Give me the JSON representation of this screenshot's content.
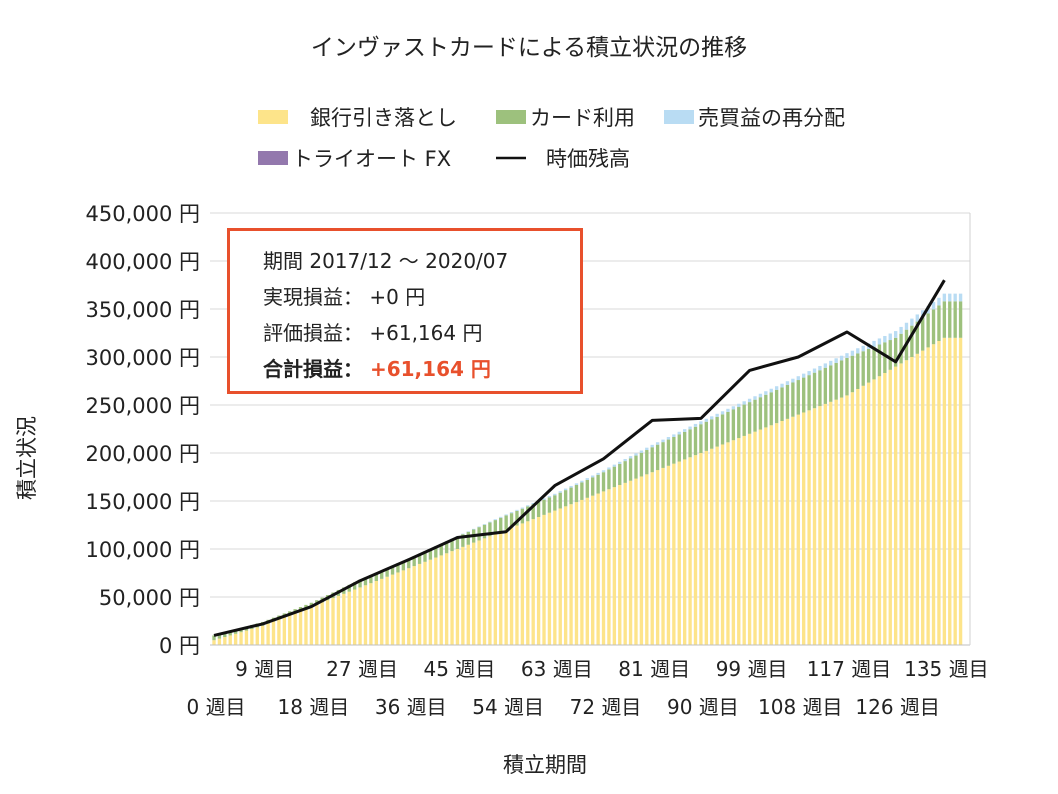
{
  "chart_data": {
    "type": "bar",
    "title": "インヴァストカードによる積立状況の推移",
    "xlabel": "積立期間",
    "ylabel": "積立状況",
    "ylim": [
      0,
      450000
    ],
    "yticks": [
      "0 円",
      "50,000 円",
      "100,000 円",
      "150,000 円",
      "200,000 円",
      "250,000 円",
      "300,000 円",
      "350,000 円",
      "400,000 円",
      "450,000 円"
    ],
    "xtick_labels_upper": [
      "9 週目",
      "27 週目",
      "45 週目",
      "63 週目",
      "81 週目",
      "99 週目",
      "117 週目",
      "135 週目"
    ],
    "xtick_labels_lower": [
      "0 週目",
      "18 週目",
      "36 週目",
      "54 週目",
      "72 週目",
      "90 週目",
      "108 週目",
      "126 週目"
    ],
    "xtick_upper_weeks": [
      9,
      27,
      45,
      63,
      81,
      99,
      117,
      135
    ],
    "xtick_lower_weeks": [
      0,
      18,
      36,
      54,
      72,
      90,
      108,
      126
    ],
    "legend": [
      "銀行引き落とし",
      "カード利用",
      "売買益の再分配",
      "トライオート FX",
      "時価残高"
    ],
    "colors": {
      "bank": "#fde48a",
      "card": "#9dc17d",
      "redistribution": "#b9dcf3",
      "autofx": "#9378ad",
      "balance": "#111111"
    },
    "x_weeks": [
      0,
      9,
      18,
      27,
      36,
      45,
      54,
      63,
      72,
      81,
      90,
      99,
      108,
      117,
      126,
      135
    ],
    "series": [
      {
        "name": "銀行引き落とし",
        "values": [
          5000,
          20000,
          40000,
          60000,
          80000,
          100000,
          120000,
          140000,
          160000,
          180000,
          200000,
          220000,
          240000,
          260000,
          290000,
          320000
        ]
      },
      {
        "name": "カード利用",
        "values": [
          5000,
          4000,
          4000,
          8000,
          10000,
          13000,
          15000,
          16000,
          20000,
          26000,
          30000,
          33000,
          36000,
          39000,
          30000,
          38000
        ]
      },
      {
        "name": "売買益の再分配",
        "values": [
          0,
          0,
          0,
          0,
          0,
          500,
          1000,
          1500,
          2000,
          2500,
          3000,
          3500,
          4000,
          5000,
          7000,
          8000
        ]
      },
      {
        "name": "トライオート FX",
        "values": [
          0,
          0,
          0,
          0,
          0,
          0,
          0,
          0,
          0,
          0,
          0,
          0,
          0,
          0,
          0,
          0
        ]
      },
      {
        "name": "時価残高",
        "values": [
          10000,
          22000,
          40000,
          67000,
          89000,
          112000,
          118000,
          166000,
          194000,
          234000,
          236000,
          286000,
          300000,
          326000,
          295000,
          380000
        ]
      }
    ]
  },
  "info": {
    "period_label": "期間",
    "period_value": "2017/12 ～ 2020/07",
    "realized_label": "実現損益：",
    "realized_value": "+0 円",
    "unrealized_label": "評価損益：",
    "unrealized_value": "+61,164 円",
    "total_label": "合計損益：",
    "total_value": "+61,164 円"
  }
}
